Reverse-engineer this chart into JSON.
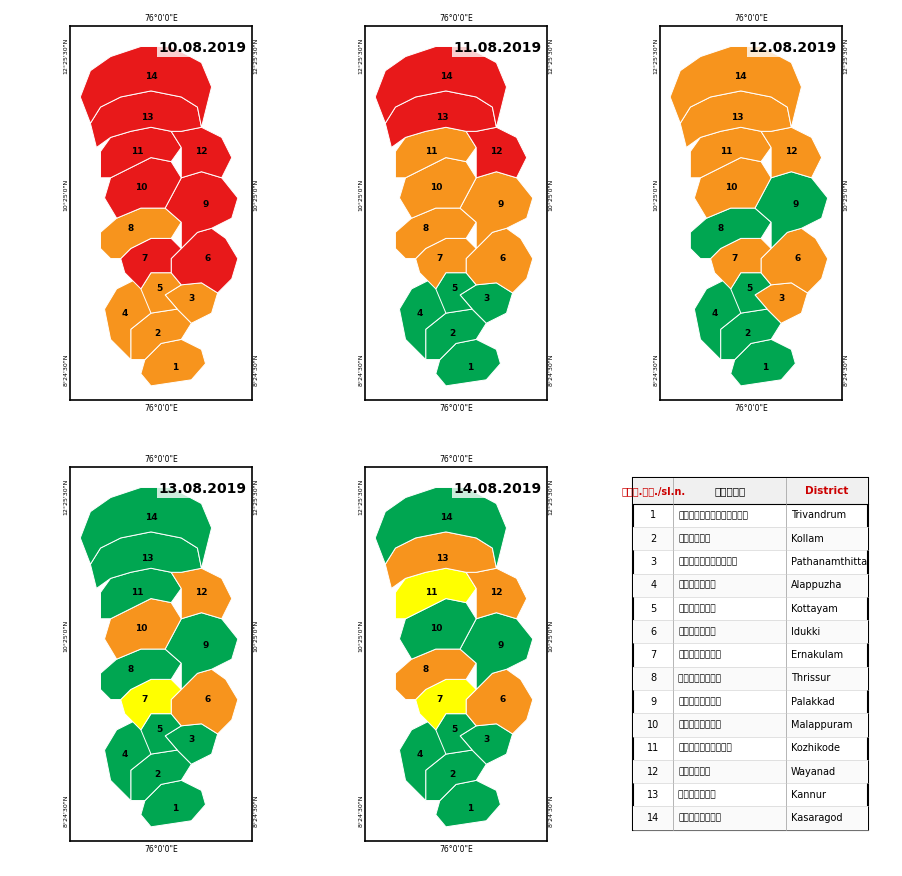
{
  "dates": [
    "10.08.2019",
    "11.08.2019",
    "12.08.2019",
    "13.08.2019",
    "14.08.2019"
  ],
  "districts": [
    {
      "num": 1,
      "name_ml": "തിരുവനന്തപുരം",
      "name_en": "Trivandrum"
    },
    {
      "num": 2,
      "name_ml": "കൊള്ളം",
      "name_en": "Kollam"
    },
    {
      "num": 3,
      "name_ml": "പത്ഥനംതിട്ട",
      "name_en": "Pathanamthitta"
    },
    {
      "num": 4,
      "name_ml": "ആലപ്പുഴ",
      "name_en": "Alappuzha"
    },
    {
      "num": 5,
      "name_ml": "കോട്ടയം",
      "name_en": "Kottayam"
    },
    {
      "num": 6,
      "name_ml": "ഇടുക്കി",
      "name_en": "Idukki"
    },
    {
      "num": 7,
      "name_ml": "എറണാകുളം",
      "name_en": "Ernakulam"
    },
    {
      "num": 8,
      "name_ml": "തൃശ്ശൂര്‍",
      "name_en": "Thrissur"
    },
    {
      "num": 9,
      "name_ml": "പലക്കാട്",
      "name_en": "Palakkad"
    },
    {
      "num": 10,
      "name_ml": "മലപ്പുറം",
      "name_en": "Malappuram"
    },
    {
      "num": 11,
      "name_ml": "കോഴിക്കോട്",
      "name_en": "Kozhikode"
    },
    {
      "num": 12,
      "name_ml": "വയനാട്",
      "name_en": "Wayanad"
    },
    {
      "num": 13,
      "name_ml": "കണ്ണൂര്‍",
      "name_en": "Kannur"
    },
    {
      "num": 14,
      "name_ml": "കാസരഗോഡ്",
      "name_en": "Kasaragod"
    }
  ],
  "alert_colors": {
    "10.08.2019": {
      "1": "orange",
      "2": "orange",
      "3": "orange",
      "4": "orange",
      "5": "orange",
      "6": "red",
      "7": "red",
      "8": "orange",
      "9": "red",
      "10": "red",
      "11": "red",
      "12": "red",
      "13": "red",
      "14": "red"
    },
    "11.08.2019": {
      "1": "green",
      "2": "green",
      "3": "green",
      "4": "green",
      "5": "green",
      "6": "orange",
      "7": "orange",
      "8": "orange",
      "9": "orange",
      "10": "orange",
      "11": "orange",
      "12": "red",
      "13": "red",
      "14": "red"
    },
    "12.08.2019": {
      "1": "green",
      "2": "green",
      "3": "orange",
      "4": "green",
      "5": "green",
      "6": "orange",
      "7": "orange",
      "8": "green",
      "9": "green",
      "10": "orange",
      "11": "orange",
      "12": "orange",
      "13": "orange",
      "14": "orange"
    },
    "13.08.2019": {
      "1": "green",
      "2": "green",
      "3": "green",
      "4": "green",
      "5": "green",
      "6": "orange",
      "7": "yellow",
      "8": "green",
      "9": "green",
      "10": "orange",
      "11": "green",
      "12": "orange",
      "13": "green",
      "14": "green"
    },
    "14.08.2019": {
      "1": "green",
      "2": "green",
      "3": "green",
      "4": "green",
      "5": "green",
      "6": "orange",
      "7": "yellow",
      "8": "orange",
      "9": "green",
      "10": "green",
      "11": "yellow",
      "12": "orange",
      "13": "orange",
      "14": "green"
    }
  },
  "color_map": {
    "red": "#E8191A",
    "orange": "#F7941D",
    "yellow": "#FFFF00",
    "green": "#00A651"
  },
  "header_color": "#CC0000",
  "legend_header_ml": "ക്ര.നം./sl.n.",
  "legend_col2_ml": "ജില്ല",
  "legend_col3": "District",
  "lon_label_top": "76°0'0\"E",
  "lon_label_bottom": "76°0'0\"E",
  "lat_label_top": "12°25'30\"N",
  "lat_label_mid": "10°25'0\"N",
  "lat_label_bot": "8°24'30\"N"
}
